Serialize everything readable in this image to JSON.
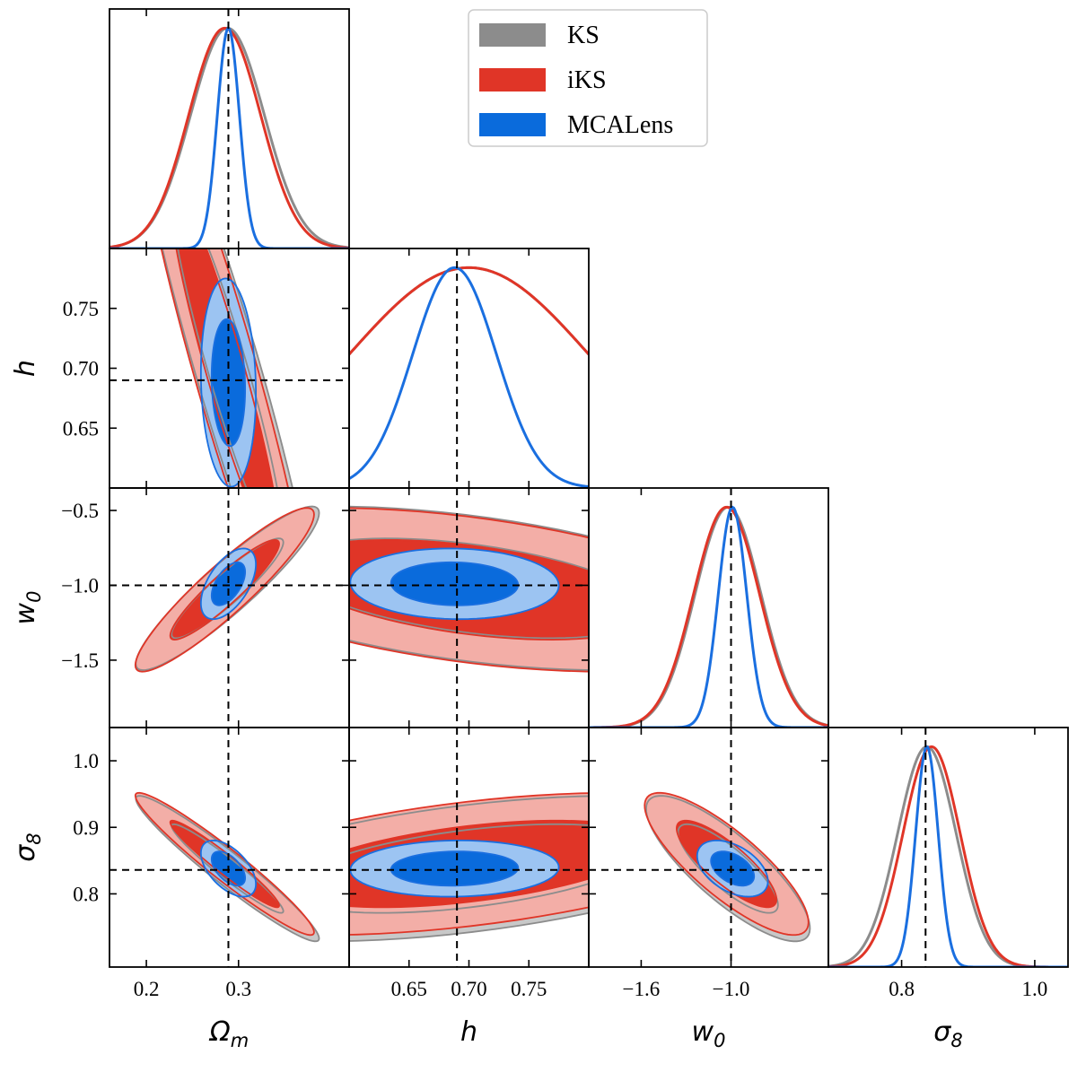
{
  "chart_data": {
    "type": "corner",
    "parameters": [
      {
        "key": "om",
        "symbol": "Ω",
        "sub": "m",
        "range": [
          0.16,
          0.42
        ],
        "ticks": [
          0.2,
          0.3
        ],
        "tick_labels": [
          "0.2",
          "0.3"
        ],
        "truth": 0.289
      },
      {
        "key": "h",
        "symbol": "h",
        "sub": "",
        "range": [
          0.6,
          0.8
        ],
        "ticks": [
          0.65,
          0.7,
          0.75
        ],
        "tick_labels": [
          "0.65",
          "0.70",
          "0.75"
        ],
        "truth": 0.69
      },
      {
        "key": "w0",
        "symbol": "w",
        "sub": "0",
        "range": [
          -1.95,
          -0.35
        ],
        "ticks": [
          -1.5,
          -1.0,
          -0.5
        ],
        "tick_labels": [
          "−1.5",
          "−1.0",
          "−0.5"
        ],
        "x_ticks": [
          -1.6,
          -1.0
        ],
        "x_tick_labels": [
          "−1.6",
          "−1.0"
        ],
        "truth": -1.0
      },
      {
        "key": "s8",
        "symbol": "σ",
        "sub": "8",
        "range": [
          0.69,
          1.05
        ],
        "ticks": [
          0.8,
          0.9,
          1.0
        ],
        "tick_labels": [
          "0.8",
          "0.9",
          "1.0"
        ],
        "x_ticks": [
          0.8,
          1.0
        ],
        "x_tick_labels": [
          "0.8",
          "1.0"
        ],
        "truth": 0.836
      }
    ],
    "legend": {
      "placement": "upper-center"
    },
    "series": [
      {
        "name": "KS",
        "color": "#8c8c8c",
        "fill_inner": "#8c8c8c",
        "fill_outer": "#c8c8c8",
        "mean": [
          0.288,
          0.7,
          -1.02,
          0.838
        ],
        "sigma": [
          0.04,
          0.1,
          0.22,
          0.044
        ],
        "corr": {
          "om_h": -0.93,
          "om_w0": 0.92,
          "om_s8": -0.96,
          "h_w0": -0.45,
          "h_s8": 0.48,
          "w0_s8": -0.82
        }
      },
      {
        "name": "iKS",
        "color": "#e03527",
        "fill_inner": "#e03527",
        "fill_outer": "#f3aea7",
        "mean": [
          0.285,
          0.7,
          -1.03,
          0.845
        ],
        "sigma": [
          0.039,
          0.1,
          0.22,
          0.043
        ],
        "corr": {
          "om_h": -0.93,
          "om_w0": 0.92,
          "om_s8": -0.96,
          "h_w0": -0.45,
          "h_s8": 0.48,
          "w0_s8": -0.82
        }
      },
      {
        "name": "MCALens",
        "color": "#1a6fe0",
        "fill_inner": "#0a6bdc",
        "fill_outer": "#9cc4f2",
        "mean": [
          0.289,
          0.688,
          -0.99,
          0.838
        ],
        "sigma": [
          0.012,
          0.035,
          0.095,
          0.017
        ],
        "corr": {
          "om_h": -0.1,
          "om_w0": 0.55,
          "om_s8": -0.55,
          "h_w0": -0.05,
          "h_s8": 0.05,
          "w0_s8": -0.45
        }
      }
    ]
  }
}
